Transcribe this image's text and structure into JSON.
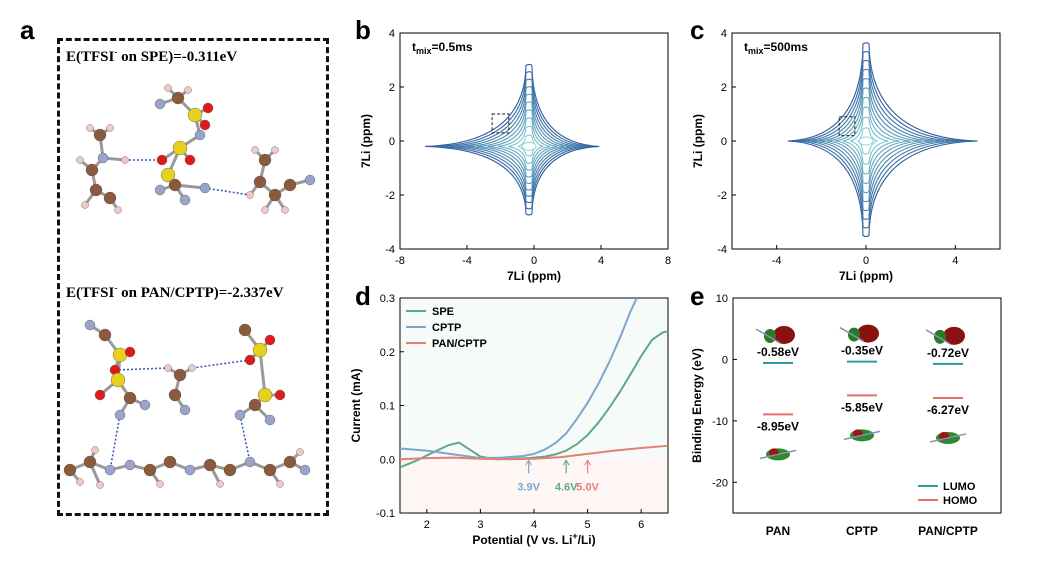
{
  "panels": {
    "a": {
      "label": "a",
      "energy_top": {
        "prefix": "E(TFSI",
        "sup": "-",
        "suffix": " on SPE)=-0.311eV"
      },
      "energy_bottom": {
        "prefix": "E(TFSI",
        "sup": "-",
        "suffix": " on PAN/CPTP)=-2.337eV"
      }
    },
    "b": {
      "label": "b",
      "annotation_base": "t",
      "annotation_sub": "mix",
      "annotation_val": "=0.5ms"
    },
    "c": {
      "label": "c",
      "annotation_base": "t",
      "annotation_sub": "mix",
      "annotation_val": "=500ms"
    },
    "d": {
      "label": "d"
    },
    "e": {
      "label": "e"
    }
  },
  "colors": {
    "spe": "#5fa88a",
    "cptp": "#7ea6cc",
    "pan_cptp": "#e58070",
    "lumo": "#2e9aa0",
    "homo": "#e8706a",
    "contour_dark": "#2e5e9e",
    "contour_light": "#8ed8d8",
    "atom_c": "#8b5a3c",
    "atom_h": "#f2c9c9",
    "atom_n": "#9aa3c9",
    "atom_s": "#e6d21e",
    "atom_o": "#e01a1a"
  },
  "chart_data": [
    {
      "panel": "b",
      "type": "heatmap",
      "xlabel": "7Li (ppm)",
      "ylabel": "7Li (ppm)",
      "xlim": [
        -8,
        8
      ],
      "ylim": [
        -4,
        4
      ],
      "xticks": [
        "-8",
        "-4",
        "0",
        "4",
        "8"
      ],
      "yticks": [
        "-4",
        "-2",
        "0",
        "2",
        "4"
      ],
      "center": [
        -0.3,
        -0.2
      ],
      "diagonal_peak_max": 2.8,
      "horizontal_extent": [
        -6.5,
        3.9
      ],
      "dashed_box": {
        "x": [
          -2.5,
          -1.5
        ],
        "y": [
          0.3,
          1.0
        ]
      }
    },
    {
      "panel": "c",
      "type": "heatmap",
      "xlabel": "7Li (ppm)",
      "ylabel": "7Li (ppm)",
      "xlim": [
        -6,
        6
      ],
      "ylim": [
        -4,
        4
      ],
      "xticks": [
        "-4",
        "0",
        "4"
      ],
      "yticks": [
        "-4",
        "-2",
        "0",
        "2",
        "4"
      ],
      "center": [
        0,
        0
      ],
      "diagonal_peak_max": 3.6,
      "horizontal_extent": [
        -3.5,
        5.0
      ],
      "dashed_box": {
        "x": [
          -1.2,
          -0.5
        ],
        "y": [
          0.2,
          0.9
        ]
      }
    },
    {
      "panel": "d",
      "type": "line",
      "xlabel": {
        "pre": "Potential (V vs. Li",
        "sup": "+",
        "post": "/Li)"
      },
      "ylabel": "Current (mA)",
      "xlim": [
        1.5,
        6.5
      ],
      "ylim": [
        -0.1,
        0.3
      ],
      "xticks": [
        "2",
        "3",
        "4",
        "5",
        "6"
      ],
      "yticks": [
        "-0.1",
        "0.0",
        "0.1",
        "0.2",
        "0.3"
      ],
      "legend_position": "top-left",
      "series": [
        {
          "name": "SPE",
          "color": "#5fa88a",
          "x": [
            1.5,
            1.8,
            2.1,
            2.4,
            2.6,
            2.8,
            3.0,
            3.3,
            3.6,
            3.9,
            4.2,
            4.4,
            4.6,
            4.8,
            5.0,
            5.2,
            5.4,
            5.6,
            5.8,
            6.0,
            6.2,
            6.4,
            6.5
          ],
          "y": [
            -0.015,
            -0.003,
            0.012,
            0.026,
            0.031,
            0.018,
            0.005,
            0.0,
            0.001,
            0.002,
            0.005,
            0.009,
            0.016,
            0.028,
            0.045,
            0.068,
            0.095,
            0.125,
            0.158,
            0.192,
            0.222,
            0.236,
            0.238
          ]
        },
        {
          "name": "CPTP",
          "color": "#7ea6cc",
          "x": [
            1.5,
            2.0,
            2.5,
            3.0,
            3.4,
            3.8,
            4.0,
            4.2,
            4.4,
            4.6,
            4.8,
            5.0,
            5.2,
            5.4,
            5.6,
            5.8,
            5.92
          ],
          "y": [
            0.02,
            0.016,
            0.009,
            0.002,
            0.003,
            0.006,
            0.01,
            0.018,
            0.03,
            0.048,
            0.075,
            0.105,
            0.14,
            0.18,
            0.225,
            0.275,
            0.3
          ]
        },
        {
          "name": "PAN/CPTP",
          "color": "#e58070",
          "x": [
            1.5,
            2.0,
            2.5,
            3.0,
            3.5,
            4.0,
            4.5,
            5.0,
            5.5,
            6.0,
            6.5
          ],
          "y": [
            0.0,
            0.002,
            0.003,
            0.001,
            0.0,
            0.001,
            0.004,
            0.01,
            0.016,
            0.021,
            0.025
          ]
        }
      ],
      "markers": [
        {
          "x": 3.9,
          "label": "3.9V",
          "color": "#7ea6cc"
        },
        {
          "x": 4.6,
          "label": "4.6V",
          "color": "#5fa88a"
        },
        {
          "x": 5.0,
          "label": "5.0V",
          "color": "#e58070"
        }
      ]
    },
    {
      "panel": "e",
      "type": "bar",
      "ylabel": "Binding Energy (eV)",
      "ylim": [
        -25,
        10
      ],
      "yticks": [
        "10",
        "0",
        "-10",
        "-20"
      ],
      "categories": [
        "PAN",
        "CPTP",
        "PAN/CPTP"
      ],
      "series": [
        {
          "name": "LUMO",
          "color": "#2e9aa0",
          "values": [
            -0.58,
            -0.35,
            -0.72
          ]
        },
        {
          "name": "HOMO",
          "color": "#e8706a",
          "values": [
            -8.95,
            -5.85,
            -6.27
          ]
        }
      ],
      "lumo_labels": [
        "-0.58eV",
        "-0.35eV",
        "-0.72eV"
      ],
      "homo_labels": [
        "-8.95eV",
        "-5.85eV",
        "-6.27eV"
      ],
      "legend_position": "bottom-right"
    }
  ]
}
